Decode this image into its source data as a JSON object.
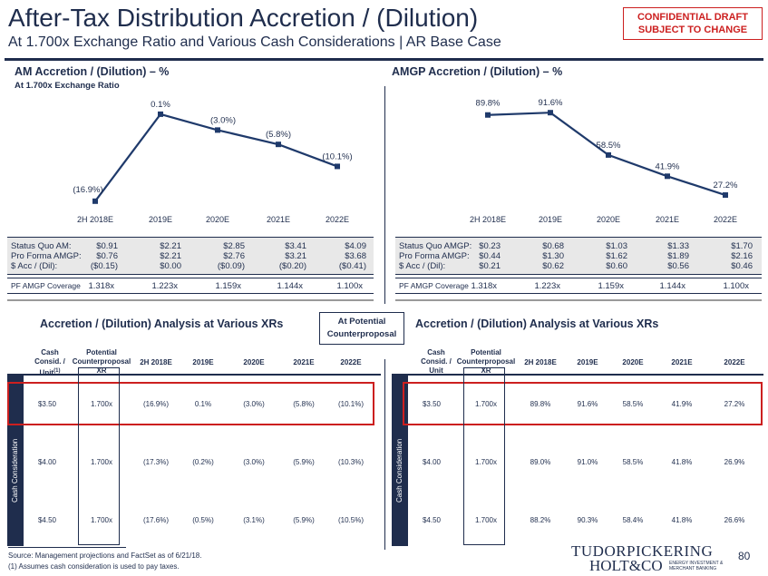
{
  "header": {
    "title": "After-Tax Distribution Accretion / (Dilution)",
    "subtitle": "At 1.700x Exchange Ratio and Various Cash Considerations | AR Base Case",
    "confidential_line1": "CONFIDENTIAL DRAFT",
    "confidential_line2": "SUBJECT TO CHANGE"
  },
  "am_section": {
    "title": "AM Accretion / (Dilution) – %",
    "subtitle": "At 1.700x Exchange Ratio"
  },
  "amgp_section": {
    "title": "AMGP Accretion / (Dilution) – %"
  },
  "chart_data": [
    {
      "type": "line",
      "categories": [
        "2H 2018E",
        "2019E",
        "2020E",
        "2021E",
        "2022E"
      ],
      "values": [
        -16.9,
        0.1,
        -3.0,
        -5.8,
        -10.1
      ],
      "data_labels": [
        "(16.9%)",
        "0.1%",
        "(3.0%)",
        "(5.8%)",
        "(10.1%)"
      ],
      "ylim": [
        -18,
        1.5
      ],
      "color": "#1f3a6b"
    },
    {
      "type": "line",
      "categories": [
        "2H 2018E",
        "2019E",
        "2020E",
        "2021E",
        "2022E"
      ],
      "values": [
        89.8,
        91.6,
        58.5,
        41.9,
        27.2
      ],
      "data_labels": [
        "89.8%",
        "91.6%",
        "58.5%",
        "41.9%",
        "27.2%"
      ],
      "ylim": [
        18,
        96
      ],
      "color": "#1f3a6b"
    }
  ],
  "am_metrics": {
    "labels": [
      "Status Quo AM:",
      "Pro Forma AMGP:",
      "$ Acc / (Dil):"
    ],
    "columns": [
      [
        "$0.91",
        "$0.76",
        "($0.15)"
      ],
      [
        "$2.21",
        "$2.21",
        "$0.00"
      ],
      [
        "$2.85",
        "$2.76",
        "($0.09)"
      ],
      [
        "$3.41",
        "$3.21",
        "($0.20)"
      ],
      [
        "$4.09",
        "$3.68",
        "($0.41)"
      ]
    ],
    "coverage_label": "PF AMGP Coverage",
    "coverage": [
      "1.318x",
      "1.223x",
      "1.159x",
      "1.144x",
      "1.100x"
    ]
  },
  "amgp_metrics": {
    "labels": [
      "Status Quo AMGP:",
      "Pro Forma AMGP:",
      "$ Acc / (Dil):"
    ],
    "columns": [
      [
        "$0.23",
        "$0.44",
        "$0.21"
      ],
      [
        "$0.68",
        "$1.30",
        "$0.62"
      ],
      [
        "$1.03",
        "$1.62",
        "$0.60"
      ],
      [
        "$1.33",
        "$1.89",
        "$0.56"
      ],
      [
        "$1.70",
        "$2.16",
        "$0.46"
      ]
    ],
    "coverage_label": "PF AMGP Coverage",
    "coverage": [
      "1.318x",
      "1.223x",
      "1.159x",
      "1.144x",
      "1.100x"
    ]
  },
  "xr_analysis": {
    "left_title": "Accretion / (Dilution) Analysis at Various XRs",
    "right_title": "Accretion / (Dilution) Analysis at Various XRs",
    "potential_label_1": "At Potential",
    "potential_label_2": "Counterproposal",
    "head_cash_1": "Cash",
    "head_cash_2": "Consid. /",
    "head_cash_3": "Unit",
    "head_cash_note": "(1)",
    "head_xr_1": "Potential",
    "head_xr_2": "Counterproposal",
    "head_xr_3": "XR",
    "years": [
      "2H 2018E",
      "2019E",
      "2020E",
      "2021E",
      "2022E"
    ],
    "side_label": "Cash Consideration",
    "left_rows": [
      {
        "cash": "$3.50",
        "xr": "1.700x",
        "vals": [
          "(16.9%)",
          "0.1%",
          "(3.0%)",
          "(5.8%)",
          "(10.1%)"
        ]
      },
      {
        "cash": "$4.00",
        "xr": "1.700x",
        "vals": [
          "(17.3%)",
          "(0.2%)",
          "(3.0%)",
          "(5.9%)",
          "(10.3%)"
        ]
      },
      {
        "cash": "$4.50",
        "xr": "1.700x",
        "vals": [
          "(17.6%)",
          "(0.5%)",
          "(3.1%)",
          "(5.9%)",
          "(10.5%)"
        ]
      }
    ],
    "right_rows": [
      {
        "cash": "$3.50",
        "xr": "1.700x",
        "vals": [
          "89.8%",
          "91.6%",
          "58.5%",
          "41.9%",
          "27.2%"
        ]
      },
      {
        "cash": "$4.00",
        "xr": "1.700x",
        "vals": [
          "89.0%",
          "91.0%",
          "58.5%",
          "41.8%",
          "26.9%"
        ]
      },
      {
        "cash": "$4.50",
        "xr": "1.700x",
        "vals": [
          "88.2%",
          "90.3%",
          "58.4%",
          "41.8%",
          "26.6%"
        ]
      }
    ]
  },
  "footer": {
    "source": "Source: Management projections and FactSet as of 6/21/18.",
    "note": "(1)    Assumes cash consideration is used to pay taxes.",
    "page": "80",
    "logo_line1": "TUDORPICKERING",
    "logo_line2": "HOLT&CO",
    "logo_small_1": "ENERGY INVESTMENT &",
    "logo_small_2": "MERCHANT BANKING"
  }
}
